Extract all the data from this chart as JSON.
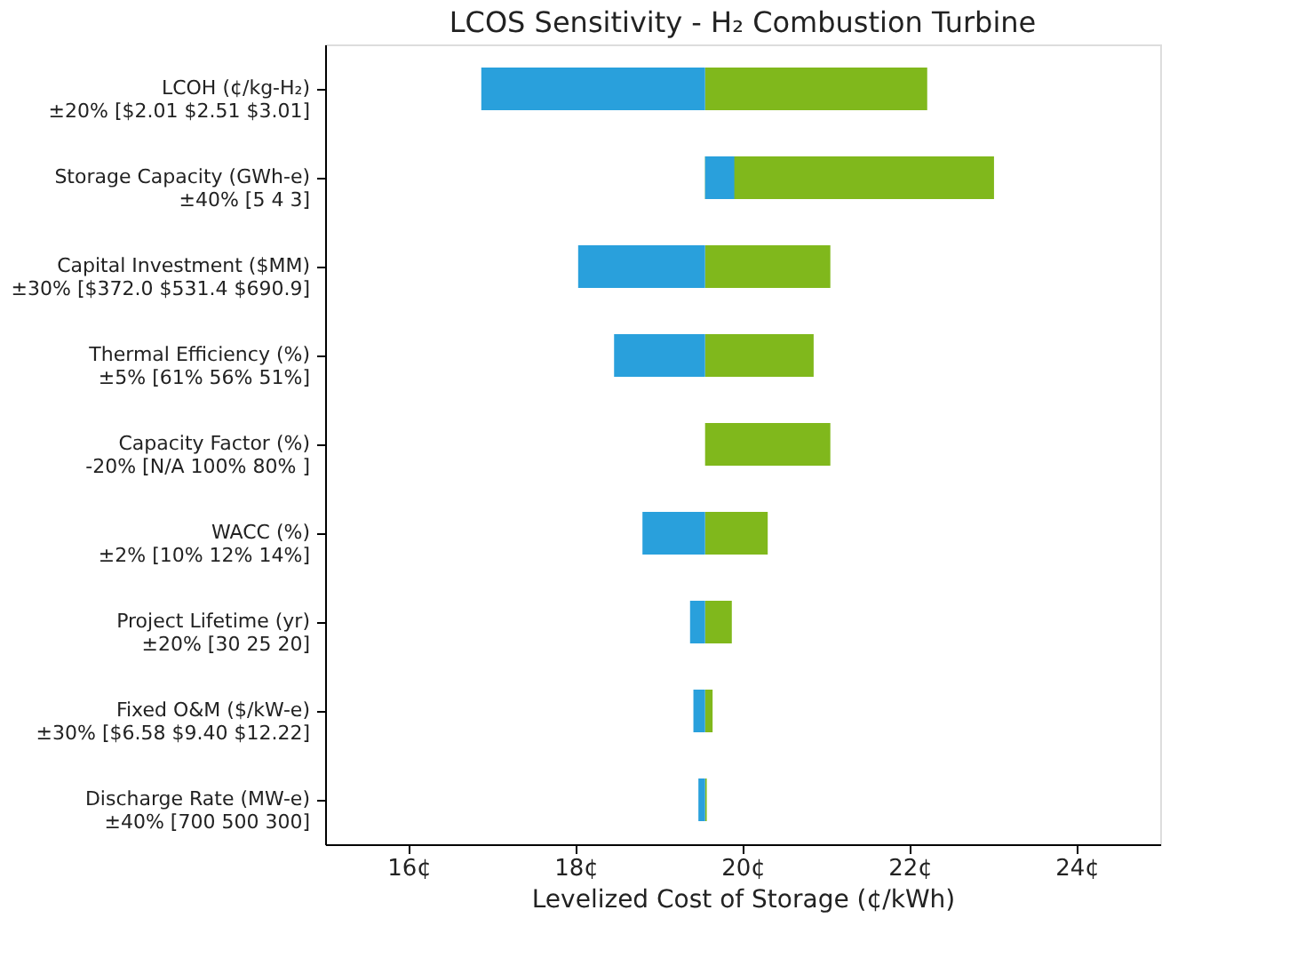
{
  "chart_data": {
    "type": "bar",
    "orientation": "horizontal",
    "title": "LCOS Sensitivity - H₂ Combustion Turbine",
    "xlabel": "Levelized Cost of Storage (¢/kWh)",
    "categories": [
      "LCOH (¢/kg-H₂)\n±20% [$2.01 $2.51 $3.01]",
      "Storage Capacity (GWh-e)\n±40% [5 4 3]",
      "Capital Investment ($MM)\n±30% [$372.0 $531.4 $690.9]",
      "Thermal Efficiency (%)\n±5% [61% 56% 51%]",
      "Capacity Factor (%)\n-20% [N/A 100% 80% ]",
      "WACC (%)\n±2% [10% 12% 14%]",
      "Project Lifetime (yr)\n±20% [30 25 20]",
      "Fixed O&M ($/kW-e)\n±30% [$6.58 $9.40 $12.22]",
      "Discharge Rate (MW-e)\n±40% [700 500 300]"
    ],
    "series": [
      {
        "color": "#80b81c",
        "base": [
          19.55,
          19.55,
          19.55,
          19.55,
          19.55,
          19.55,
          19.55,
          19.55,
          19.55
        ],
        "values": [
          2.66,
          3.46,
          1.5,
          1.3,
          1.5,
          0.75,
          0.32,
          0.09,
          0.02
        ]
      },
      {
        "color": "#29a0dc",
        "base": [
          19.55,
          19.55,
          19.55,
          19.55,
          null,
          19.55,
          19.55,
          19.55,
          19.55
        ],
        "values": [
          -2.68,
          0.35,
          -1.52,
          -1.09,
          null,
          -0.75,
          -0.18,
          -0.14,
          -0.08
        ]
      }
    ],
    "xlim": [
      15,
      25
    ],
    "xticks": [
      {
        "value": 16,
        "label": "16¢"
      },
      {
        "value": 18,
        "label": "18¢"
      },
      {
        "value": 20,
        "label": "20¢"
      },
      {
        "value": 22,
        "label": "22¢"
      },
      {
        "value": 24,
        "label": "24¢"
      }
    ],
    "grid": false,
    "legend": false
  }
}
